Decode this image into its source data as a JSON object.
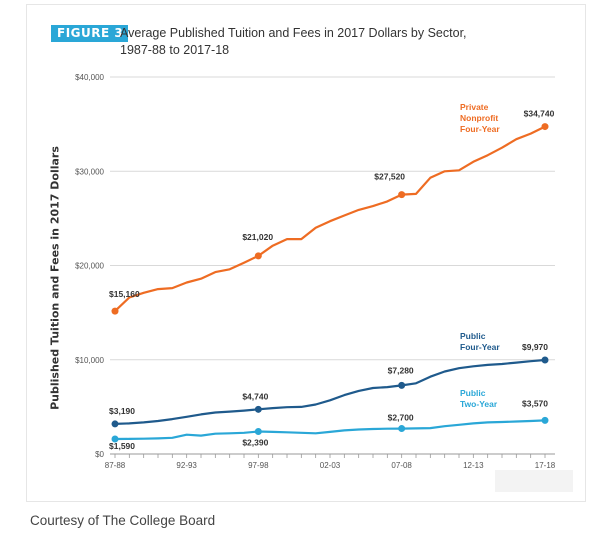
{
  "figure_badge": "FIGURE 3",
  "title_line1": "Average Published Tuition and Fees in 2017 Dollars by Sector,",
  "title_line2": "1987-88 to 2017-18",
  "caption": "Courtesy of The College Board",
  "colors": {
    "private": "#ee6c23",
    "public4": "#1f5a8c",
    "public2": "#2aa7d7",
    "badge": "#2aa7d7",
    "grid": "#d9d9d9",
    "axis": "#999999"
  },
  "chart_data": {
    "type": "line",
    "ylabel": "Published Tuition and Fees in 2017 Dollars",
    "xlabel": "",
    "ylim": [
      0,
      40000
    ],
    "yticks": [
      0,
      10000,
      20000,
      30000,
      40000
    ],
    "ytick_labels": [
      "$0",
      "$10,000",
      "$20,000",
      "$30,000",
      "$40,000"
    ],
    "x": [
      "87-88",
      "88-89",
      "89-90",
      "90-91",
      "91-92",
      "92-93",
      "93-94",
      "94-95",
      "95-96",
      "96-97",
      "97-98",
      "98-99",
      "99-00",
      "00-01",
      "01-02",
      "02-03",
      "03-04",
      "04-05",
      "05-06",
      "06-07",
      "07-08",
      "08-09",
      "09-10",
      "10-11",
      "11-12",
      "12-13",
      "13-14",
      "14-15",
      "15-16",
      "16-17",
      "17-18"
    ],
    "xtick_labels": [
      "87-88",
      "92-93",
      "97-98",
      "02-03",
      "07-08",
      "12-13",
      "17-18"
    ],
    "grid": true,
    "series": [
      {
        "name": "Private Nonprofit Four-Year",
        "label_lines": [
          "Private",
          "Nonprofit",
          "Four-Year"
        ],
        "color_key": "private",
        "values": [
          15160,
          16600,
          17100,
          17500,
          17600,
          18200,
          18600,
          19300,
          19600,
          20300,
          21020,
          22100,
          22800,
          22800,
          24000,
          24700,
          25300,
          25900,
          26300,
          26800,
          27520,
          27600,
          29300,
          30000,
          30100,
          31000,
          31700,
          32500,
          33400,
          34000,
          34740
        ],
        "callouts": [
          {
            "i": 0,
            "text": "$15,160"
          },
          {
            "i": 10,
            "text": "$21,020"
          },
          {
            "i": 20,
            "text": "$27,520"
          },
          {
            "i": 30,
            "text": "$34,740"
          }
        ]
      },
      {
        "name": "Public Four-Year",
        "label_lines": [
          "Public",
          "Four-Year"
        ],
        "color_key": "public4",
        "values": [
          3190,
          3250,
          3350,
          3500,
          3700,
          3950,
          4200,
          4400,
          4500,
          4600,
          4740,
          4870,
          4970,
          5000,
          5250,
          5700,
          6250,
          6700,
          7000,
          7100,
          7280,
          7500,
          8200,
          8750,
          9100,
          9300,
          9450,
          9550,
          9700,
          9850,
          9970
        ],
        "callouts": [
          {
            "i": 0,
            "text": "$3,190"
          },
          {
            "i": 10,
            "text": "$4,740"
          },
          {
            "i": 20,
            "text": "$7,280"
          },
          {
            "i": 30,
            "text": "$9,970"
          }
        ]
      },
      {
        "name": "Public Two-Year",
        "label_lines": [
          "Public",
          "Two-Year"
        ],
        "color_key": "public2",
        "values": [
          1590,
          1600,
          1620,
          1650,
          1720,
          2050,
          1950,
          2150,
          2200,
          2250,
          2390,
          2350,
          2300,
          2250,
          2200,
          2350,
          2500,
          2600,
          2650,
          2680,
          2700,
          2720,
          2750,
          2950,
          3100,
          3250,
          3350,
          3400,
          3450,
          3500,
          3570
        ],
        "callouts": [
          {
            "i": 0,
            "text": "$1,590"
          },
          {
            "i": 10,
            "text": "$2,390"
          },
          {
            "i": 20,
            "text": "$2,700"
          },
          {
            "i": 30,
            "text": "$3,570"
          }
        ]
      }
    ]
  }
}
